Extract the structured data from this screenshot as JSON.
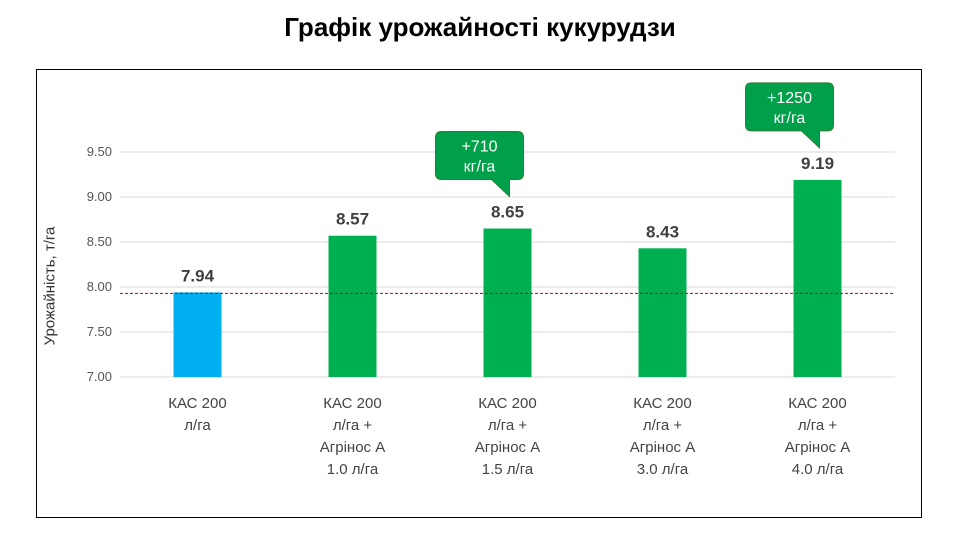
{
  "title": "Графік урожайності кукурудзи",
  "chart_data": {
    "type": "bar",
    "title": "Графік урожайності кукурудзи",
    "xlabel": "",
    "ylabel": "Урожайність, т/га",
    "ylim": [
      7.0,
      9.5
    ],
    "yticks": [
      "7.00",
      "7.50",
      "8.00",
      "8.50",
      "9.00",
      "9.50"
    ],
    "grid": true,
    "reference_line": 7.94,
    "categories": [
      [
        "КАС 200",
        "л/га"
      ],
      [
        "КАС 200",
        "л/га +",
        "Агрінос А",
        "1.0 л/га"
      ],
      [
        "КАС 200",
        "л/га +",
        "Агрінос А",
        "1.5 л/га"
      ],
      [
        "КАС 200",
        "л/га +",
        "Агрінос А",
        "3.0 л/га"
      ],
      [
        "КАС 200",
        "л/га +",
        "Агрінос А",
        "4.0 л/га"
      ]
    ],
    "values": [
      7.94,
      8.57,
      8.65,
      8.43,
      9.19
    ],
    "value_labels": [
      "7.94",
      "8.57",
      "8.65",
      "8.43",
      "9.19"
    ],
    "colors": [
      "#00b0f0",
      "#00b050",
      "#00b050",
      "#00b050",
      "#00b050"
    ],
    "reference_color": "#c00000",
    "callouts": [
      {
        "bar": 2,
        "lines": [
          "+710",
          "кг/га"
        ]
      },
      {
        "bar": 4,
        "lines": [
          "+1250",
          "кг/га"
        ]
      }
    ],
    "callout_color": "#00a04a"
  }
}
